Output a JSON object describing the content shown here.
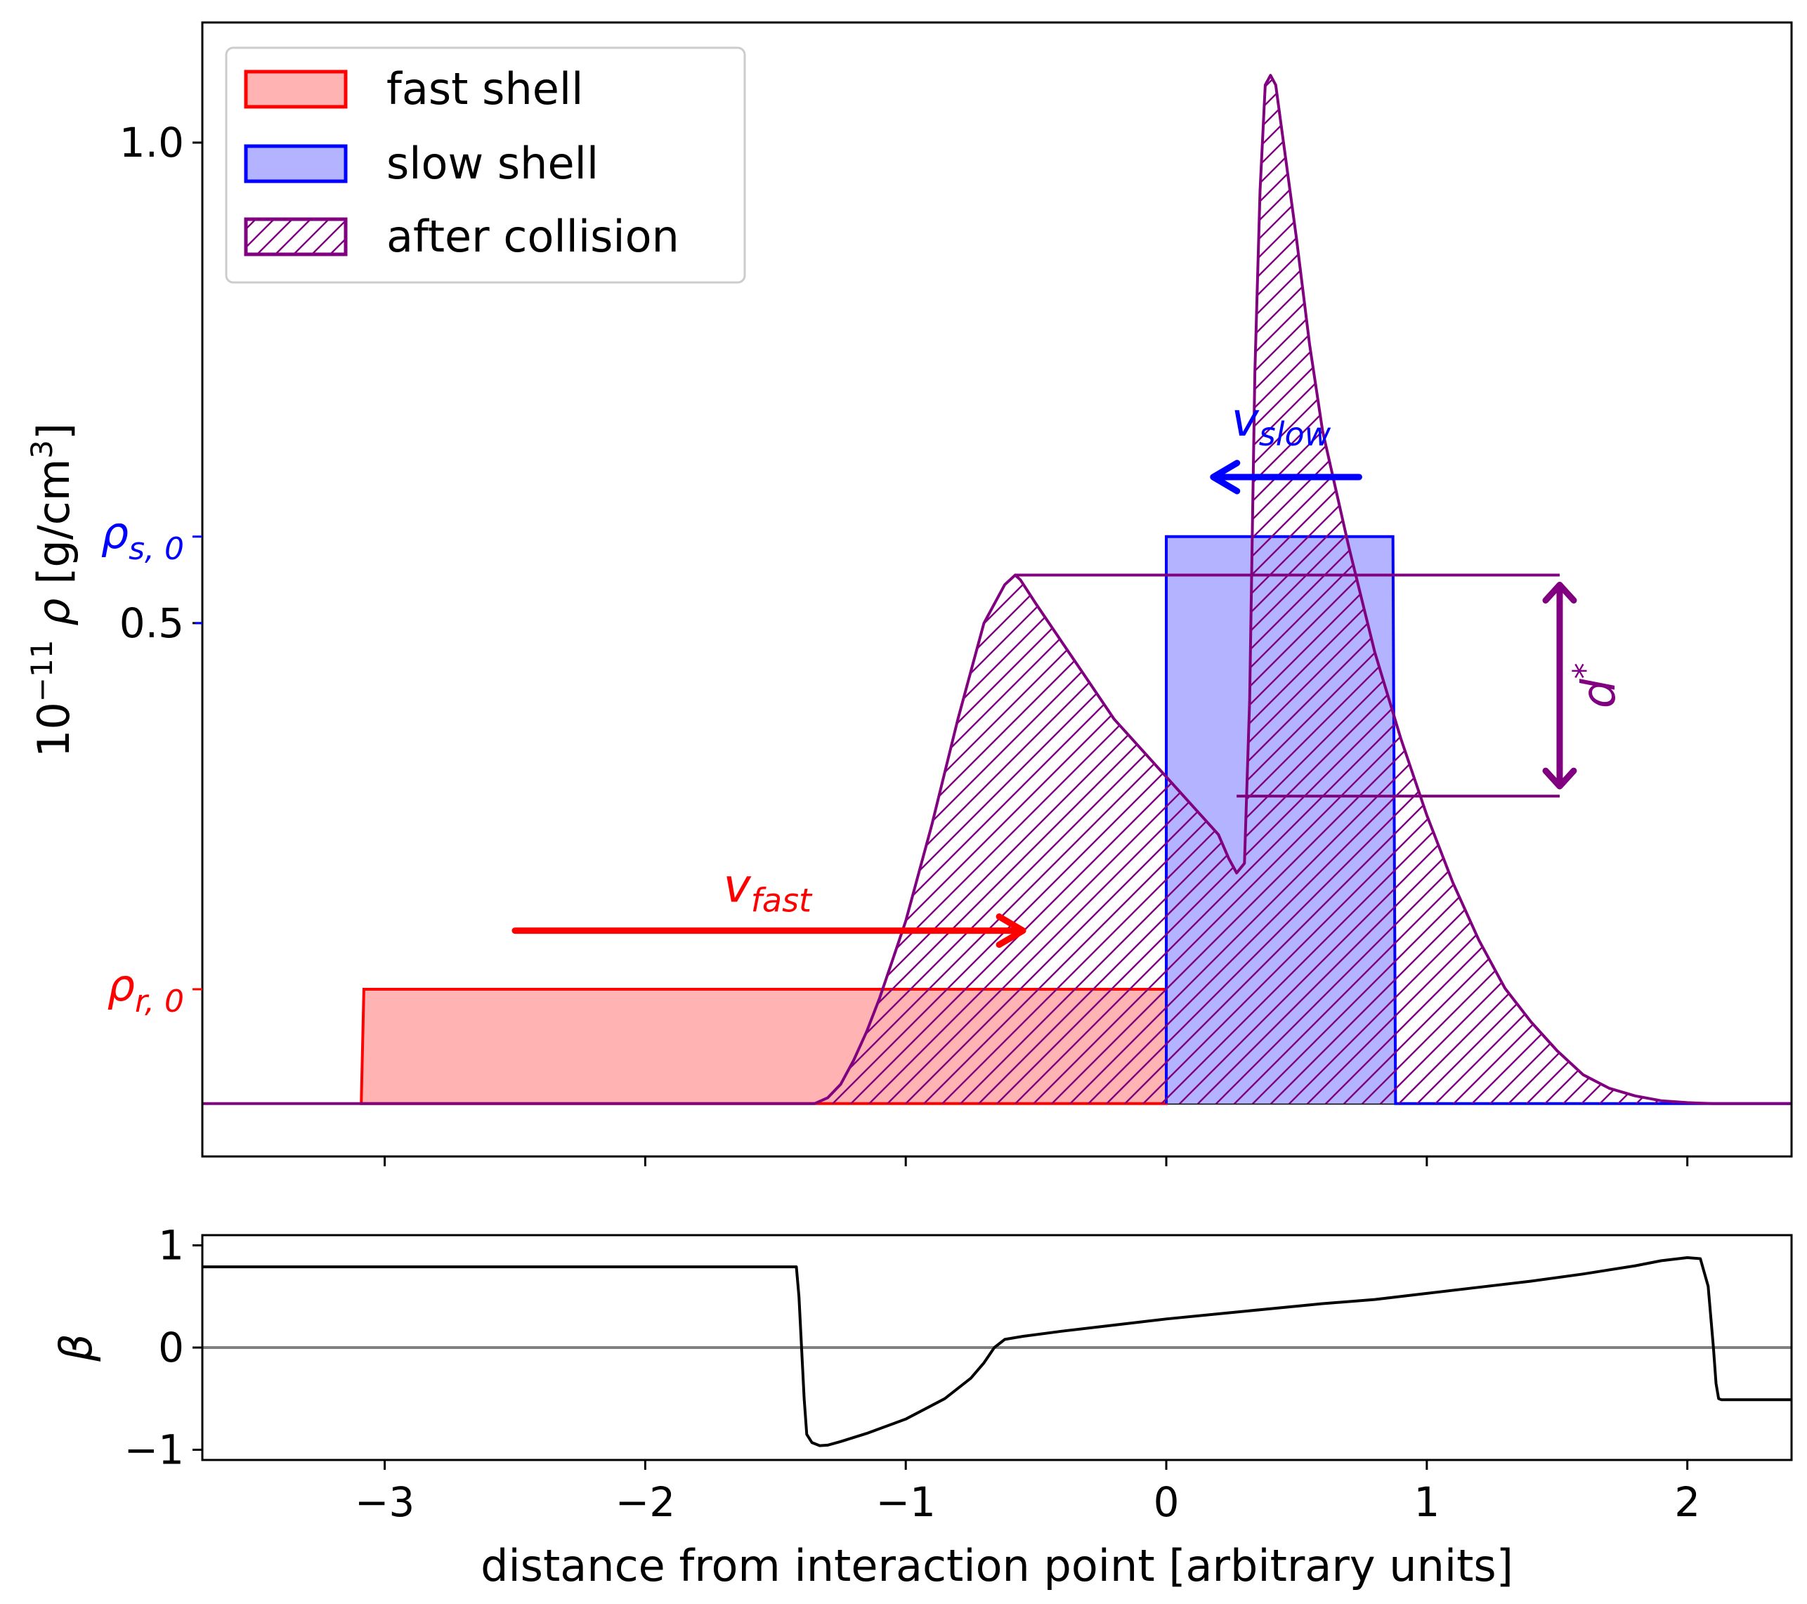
{
  "chart_data": [
    {
      "type": "area",
      "name": "density",
      "ylabel_prefix": "10",
      "ylabel_exp": "−11",
      "ylabel_symbol": "ρ",
      "ylabel_unit": "[g/cm",
      "ylabel_unit_exp": "3",
      "ylabel_unit_close": "]",
      "xlim": [
        -3.7,
        2.4
      ],
      "ylim": [
        -0.055,
        1.125
      ],
      "yticks": [
        {
          "value": 1.0,
          "label": "1.0"
        },
        {
          "value": 0.5,
          "label": "0.5"
        }
      ],
      "special_ticks": [
        {
          "value": 0.59,
          "symbol": "ρ",
          "sub": "s, 0",
          "color": "#0000ff"
        },
        {
          "value": 0.119,
          "symbol": "ρ",
          "sub": "r, 0",
          "color": "#ff0000"
        }
      ],
      "series": [
        {
          "name": "fast shell",
          "kind": "rect",
          "x0": -3.08,
          "x1": 0.0,
          "y": 0.119,
          "color": "#ff0000",
          "fill": "#ffb3b3"
        },
        {
          "name": "slow shell",
          "kind": "rect",
          "x0": 0.0,
          "x1": 0.87,
          "y": 0.59,
          "color": "#0000ff",
          "fill": "#b3b3ff"
        },
        {
          "name": "after collision",
          "kind": "hatched",
          "color": "#800080",
          "x": [
            -3.7,
            -1.35,
            -1.3,
            -1.25,
            -1.2,
            -1.15,
            -1.1,
            -1.05,
            -1.0,
            -0.9,
            -0.8,
            -0.7,
            -0.62,
            -0.58,
            -0.56,
            -0.5,
            -0.4,
            -0.3,
            -0.2,
            -0.1,
            0.0,
            0.1,
            0.15,
            0.2,
            0.24,
            0.27,
            0.3,
            0.32,
            0.34,
            0.36,
            0.38,
            0.4,
            0.42,
            0.45,
            0.5,
            0.55,
            0.6,
            0.7,
            0.8,
            0.9,
            1.0,
            1.1,
            1.2,
            1.3,
            1.4,
            1.5,
            1.6,
            1.7,
            1.8,
            1.9,
            2.0,
            2.1,
            2.4
          ],
          "y": [
            0.0,
            0.0,
            0.006,
            0.02,
            0.045,
            0.075,
            0.11,
            0.15,
            0.19,
            0.29,
            0.4,
            0.5,
            0.54,
            0.55,
            0.545,
            0.52,
            0.48,
            0.44,
            0.4,
            0.37,
            0.34,
            0.31,
            0.295,
            0.28,
            0.255,
            0.24,
            0.25,
            0.42,
            0.76,
            0.95,
            1.06,
            1.07,
            1.06,
            1.0,
            0.9,
            0.79,
            0.7,
            0.58,
            0.47,
            0.38,
            0.3,
            0.23,
            0.17,
            0.12,
            0.085,
            0.055,
            0.03,
            0.016,
            0.008,
            0.003,
            0.001,
            0.0,
            0.0
          ]
        }
      ],
      "annotations": {
        "v_fast": {
          "symbol": "v",
          "sub": "fast",
          "color": "#ff0000",
          "arrow_from_x": -2.5,
          "arrow_to_x": -0.55,
          "arrow_y": 0.18,
          "label_x": -1.7,
          "label_y": 0.21
        },
        "v_slow": {
          "symbol": "v",
          "sub": "slow",
          "color": "#0000ff",
          "arrow_from_x": 0.74,
          "arrow_to_x": 0.18,
          "arrow_y": 0.652,
          "label_x": 0.25,
          "label_y": 0.695
        },
        "d_star": {
          "symbol": "d",
          "sup": "*",
          "color": "#800080",
          "x": 1.51,
          "top_y": 0.55,
          "bottom_y": 0.32,
          "line_left_top": -0.58,
          "line_left_bottom": 0.27
        }
      },
      "legend": {
        "position": "upper-left",
        "entries": [
          {
            "label": "fast shell",
            "edge": "#ff0000",
            "fill": "#ffb3b3",
            "hatch": false
          },
          {
            "label": "slow shell",
            "edge": "#0000ff",
            "fill": "#b3b3ff",
            "hatch": false
          },
          {
            "label": "after collision",
            "edge": "#800080",
            "fill": "none",
            "hatch": true
          }
        ]
      }
    },
    {
      "type": "line",
      "name": "beta",
      "ylabel": "β",
      "xlabel": "distance from interaction point [arbitrary units]",
      "xlim": [
        -3.7,
        2.4
      ],
      "ylim": [
        -1.1,
        1.1
      ],
      "xticks": [
        {
          "value": -3,
          "label": "−3"
        },
        {
          "value": -2,
          "label": "−2"
        },
        {
          "value": -1,
          "label": "−1"
        },
        {
          "value": 0,
          "label": "0"
        },
        {
          "value": 1,
          "label": "1"
        },
        {
          "value": 2,
          "label": "2"
        }
      ],
      "yticks": [
        {
          "value": 1,
          "label": "1"
        },
        {
          "value": 0,
          "label": "0"
        },
        {
          "value": -1,
          "label": "−1"
        }
      ],
      "zero_line_color": "#808080",
      "series": [
        {
          "name": "beta",
          "color": "#000000",
          "x": [
            -3.7,
            -1.42,
            -1.41,
            -1.4,
            -1.39,
            -1.38,
            -1.36,
            -1.33,
            -1.3,
            -1.25,
            -1.15,
            -1.0,
            -0.85,
            -0.75,
            -0.7,
            -0.66,
            -0.62,
            -0.55,
            -0.4,
            -0.2,
            0.0,
            0.2,
            0.4,
            0.6,
            0.8,
            1.0,
            1.2,
            1.4,
            1.6,
            1.8,
            1.9,
            2.0,
            2.05,
            2.08,
            2.1,
            2.11,
            2.12,
            2.13,
            2.4
          ],
          "y": [
            0.79,
            0.79,
            0.5,
            0.0,
            -0.5,
            -0.85,
            -0.93,
            -0.96,
            -0.955,
            -0.92,
            -0.84,
            -0.7,
            -0.5,
            -0.3,
            -0.15,
            0.0,
            0.08,
            0.11,
            0.16,
            0.22,
            0.28,
            0.33,
            0.38,
            0.43,
            0.47,
            0.53,
            0.59,
            0.65,
            0.72,
            0.8,
            0.85,
            0.88,
            0.87,
            0.6,
            0.0,
            -0.35,
            -0.5,
            -0.51,
            -0.51
          ]
        }
      ]
    }
  ]
}
